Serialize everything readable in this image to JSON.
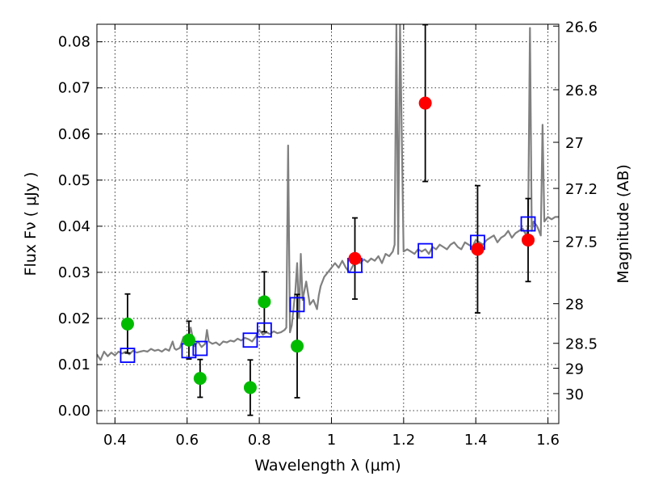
{
  "chart_data": {
    "type": "scatter",
    "xlabel": "Wavelength  λ (μm)",
    "ylabel": "Flux  Fν  ( μJy )",
    "ylabel_right": "Magnitude (AB)",
    "xlim": [
      0.35,
      1.63
    ],
    "ylim": [
      -0.0028,
      0.0838
    ],
    "grid": true,
    "x_ticks": [
      0.4,
      0.6,
      0.8,
      1.0,
      1.2,
      1.4,
      1.6
    ],
    "x_tick_labels": [
      "0.4",
      "0.6",
      "0.8",
      "1",
      "1.2",
      "1.4",
      "1.6"
    ],
    "y_ticks": [
      0.0,
      0.01,
      0.02,
      0.03,
      0.04,
      0.05,
      0.06,
      0.07,
      0.08
    ],
    "y_tick_labels": [
      "0.00",
      "0.01",
      "0.02",
      "0.03",
      "0.04",
      "0.05",
      "0.06",
      "0.07",
      "0.08"
    ],
    "right_axis": {
      "labels": [
        "26.6",
        "26.8",
        "27",
        "27.2",
        "27.5",
        "28",
        "28.5",
        "29",
        "30"
      ],
      "flux_positions": [
        0.0834,
        0.0696,
        0.0582,
        0.0482,
        0.0367,
        0.0232,
        0.0146,
        0.0092,
        0.0037
      ]
    },
    "series": [
      {
        "name": "Template spectrum",
        "kind": "line",
        "color": "#808080",
        "x": [
          0.35,
          0.36,
          0.37,
          0.38,
          0.39,
          0.4,
          0.41,
          0.42,
          0.43,
          0.44,
          0.45,
          0.46,
          0.47,
          0.48,
          0.49,
          0.5,
          0.51,
          0.52,
          0.53,
          0.54,
          0.55,
          0.56,
          0.565,
          0.57,
          0.58,
          0.59,
          0.6,
          0.61,
          0.62,
          0.63,
          0.64,
          0.65,
          0.655,
          0.66,
          0.67,
          0.68,
          0.69,
          0.7,
          0.71,
          0.72,
          0.73,
          0.74,
          0.75,
          0.76,
          0.77,
          0.78,
          0.79,
          0.8,
          0.81,
          0.82,
          0.83,
          0.84,
          0.85,
          0.86,
          0.87,
          0.875,
          0.88,
          0.885,
          0.89,
          0.9,
          0.905,
          0.91,
          0.915,
          0.92,
          0.93,
          0.94,
          0.95,
          0.955,
          0.96,
          0.965,
          0.97,
          0.98,
          0.99,
          1.0,
          1.01,
          1.02,
          1.03,
          1.04,
          1.05,
          1.06,
          1.07,
          1.08,
          1.09,
          1.1,
          1.11,
          1.12,
          1.13,
          1.14,
          1.15,
          1.16,
          1.17,
          1.175,
          1.18,
          1.185,
          1.19,
          1.2,
          1.21,
          1.22,
          1.23,
          1.24,
          1.25,
          1.26,
          1.27,
          1.28,
          1.29,
          1.3,
          1.31,
          1.32,
          1.33,
          1.34,
          1.35,
          1.36,
          1.37,
          1.38,
          1.39,
          1.4,
          1.41,
          1.42,
          1.43,
          1.44,
          1.45,
          1.46,
          1.47,
          1.48,
          1.49,
          1.5,
          1.51,
          1.52,
          1.53,
          1.54,
          1.545,
          1.55,
          1.555,
          1.56,
          1.57,
          1.58,
          1.585,
          1.59,
          1.6,
          1.61,
          1.62,
          1.63
        ],
        "y": [
          0.0122,
          0.011,
          0.0128,
          0.0118,
          0.0126,
          0.012,
          0.0128,
          0.0124,
          0.0128,
          0.0122,
          0.013,
          0.0126,
          0.0128,
          0.013,
          0.0128,
          0.0134,
          0.013,
          0.0132,
          0.0128,
          0.0134,
          0.013,
          0.015,
          0.0135,
          0.0132,
          0.0136,
          0.016,
          0.0145,
          0.018,
          0.014,
          0.015,
          0.0138,
          0.0145,
          0.0175,
          0.015,
          0.0145,
          0.0148,
          0.0142,
          0.015,
          0.0148,
          0.0152,
          0.015,
          0.0156,
          0.0152,
          0.0158,
          0.0155,
          0.015,
          0.016,
          0.0175,
          0.0165,
          0.017,
          0.0166,
          0.0172,
          0.0168,
          0.017,
          0.0175,
          0.018,
          0.0575,
          0.017,
          0.0185,
          0.026,
          0.032,
          0.02,
          0.034,
          0.024,
          0.028,
          0.023,
          0.024,
          0.023,
          0.022,
          0.025,
          0.027,
          0.029,
          0.03,
          0.031,
          0.032,
          0.031,
          0.0325,
          0.031,
          0.03,
          0.0315,
          0.0325,
          0.032,
          0.0328,
          0.0322,
          0.033,
          0.0325,
          0.0335,
          0.032,
          0.034,
          0.0335,
          0.0345,
          0.036,
          0.0838,
          0.034,
          0.0838,
          0.0345,
          0.035,
          0.0345,
          0.034,
          0.035,
          0.0345,
          0.035,
          0.034,
          0.0355,
          0.035,
          0.036,
          0.0355,
          0.035,
          0.036,
          0.0365,
          0.0355,
          0.035,
          0.0365,
          0.036,
          0.0355,
          0.037,
          0.0365,
          0.036,
          0.037,
          0.0375,
          0.038,
          0.0365,
          0.0375,
          0.038,
          0.039,
          0.0375,
          0.0385,
          0.039,
          0.0395,
          0.038,
          0.04,
          0.083,
          0.039,
          0.041,
          0.04,
          0.038,
          0.062,
          0.041,
          0.042,
          0.0415,
          0.042,
          0.042
        ]
      },
      {
        "name": "Green detections",
        "kind": "points",
        "marker": "circle",
        "color": "#00bb00",
        "x": [
          0.435,
          0.605,
          0.636,
          0.775,
          0.814,
          0.905
        ],
        "y": [
          0.0188,
          0.0153,
          0.007,
          0.005,
          0.0236,
          0.014
        ],
        "yerr": [
          0.0,
          0.0041,
          0.0041,
          0.006,
          0.0065,
          0.0112
        ]
      },
      {
        "name": "Red detections",
        "kind": "points",
        "marker": "circle",
        "color": "#ff0000",
        "x": [
          1.065,
          1.26,
          1.405,
          1.545
        ],
        "y": [
          0.033,
          0.0667,
          0.035,
          0.037
        ],
        "yerr": [
          0.0088,
          0.017,
          0.0138,
          0.009
        ]
      },
      {
        "name": "Model photometry",
        "kind": "points",
        "marker": "square",
        "color": "#0000ff",
        "x": [
          0.435,
          0.605,
          0.636,
          0.775,
          0.814,
          0.905,
          1.065,
          1.26,
          1.405,
          1.545
        ],
        "y": [
          0.012,
          0.013,
          0.0135,
          0.0153,
          0.0175,
          0.023,
          0.0315,
          0.0347,
          0.0365,
          0.0405
        ]
      },
      {
        "name": "Upper-limit error bar",
        "kind": "errorbar",
        "color": "#000000",
        "x": [
          0.435
        ],
        "ylow": [
          0.0125
        ],
        "yhigh": [
          0.0253
        ]
      }
    ]
  }
}
